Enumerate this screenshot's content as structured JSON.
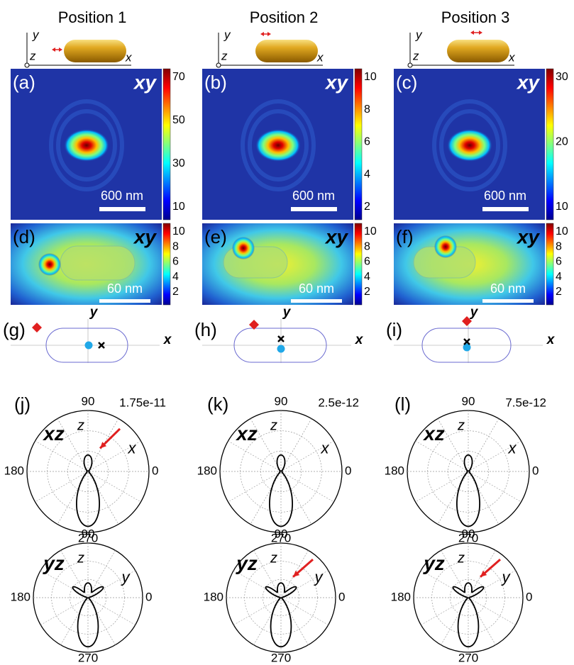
{
  "columns": [
    {
      "title": "Position 1",
      "axes": {
        "y": "y",
        "z": "z",
        "x": "x"
      },
      "top": {
        "label": "(a)",
        "plane": "xy",
        "ticks": [
          70,
          50,
          30,
          10
        ],
        "scale": "600 nm"
      },
      "zoom": {
        "label": "(d)",
        "plane": "xy",
        "ticks": [
          10,
          8,
          6,
          4,
          2
        ],
        "scale": "60 nm"
      },
      "schematic": {
        "label": "(g)",
        "y": "y",
        "x": "x"
      },
      "xz": {
        "label": "(j)",
        "max": "1.75e-11",
        "plane": "xz",
        "up": "z",
        "right": "x",
        "angles": {
          "top": "90",
          "left": "180",
          "right": "0",
          "bottom": "270"
        }
      },
      "yz": {
        "plane": "yz",
        "up": "z",
        "right": "y",
        "angles": {
          "top": "90",
          "left": "180",
          "right": "0",
          "bottom": "270"
        }
      }
    },
    {
      "title": "Position 2",
      "axes": {
        "y": "y",
        "z": "z",
        "x": "x"
      },
      "top": {
        "label": "(b)",
        "plane": "xy",
        "ticks": [
          10,
          8,
          6,
          4,
          2
        ],
        "scale": "600 nm"
      },
      "zoom": {
        "label": "(e)",
        "plane": "xy",
        "ticks": [
          10,
          8,
          6,
          4,
          2
        ],
        "scale": "60 nm"
      },
      "schematic": {
        "label": "(h)",
        "y": "y",
        "x": "x"
      },
      "xz": {
        "label": "(k)",
        "max": "2.5e-12",
        "plane": "xz",
        "up": "z",
        "right": "x",
        "angles": {
          "top": "90",
          "left": "180",
          "right": "0",
          "bottom": "270"
        }
      },
      "yz": {
        "plane": "yz",
        "up": "z",
        "right": "y",
        "angles": {
          "top": "90",
          "left": "180",
          "right": "0",
          "bottom": "270"
        }
      }
    },
    {
      "title": "Position 3",
      "axes": {
        "y": "y",
        "z": "z",
        "x": "x"
      },
      "top": {
        "label": "(c)",
        "plane": "xy",
        "ticks": [
          30,
          20,
          10
        ],
        "scale": "600 nm"
      },
      "zoom": {
        "label": "(f)",
        "plane": "xy",
        "ticks": [
          10,
          8,
          6,
          4,
          2
        ],
        "scale": "60 nm"
      },
      "schematic": {
        "label": "(i)",
        "y": "y",
        "x": "x"
      },
      "xz": {
        "label": "(l)",
        "max": "7.5e-12",
        "plane": "xz",
        "up": "z",
        "right": "x",
        "angles": {
          "top": "90",
          "left": "180",
          "right": "0",
          "bottom": "270"
        }
      },
      "yz": {
        "plane": "yz",
        "up": "z",
        "right": "y",
        "angles": {
          "top": "90",
          "left": "180",
          "right": "0",
          "bottom": "270"
        }
      }
    }
  ]
}
